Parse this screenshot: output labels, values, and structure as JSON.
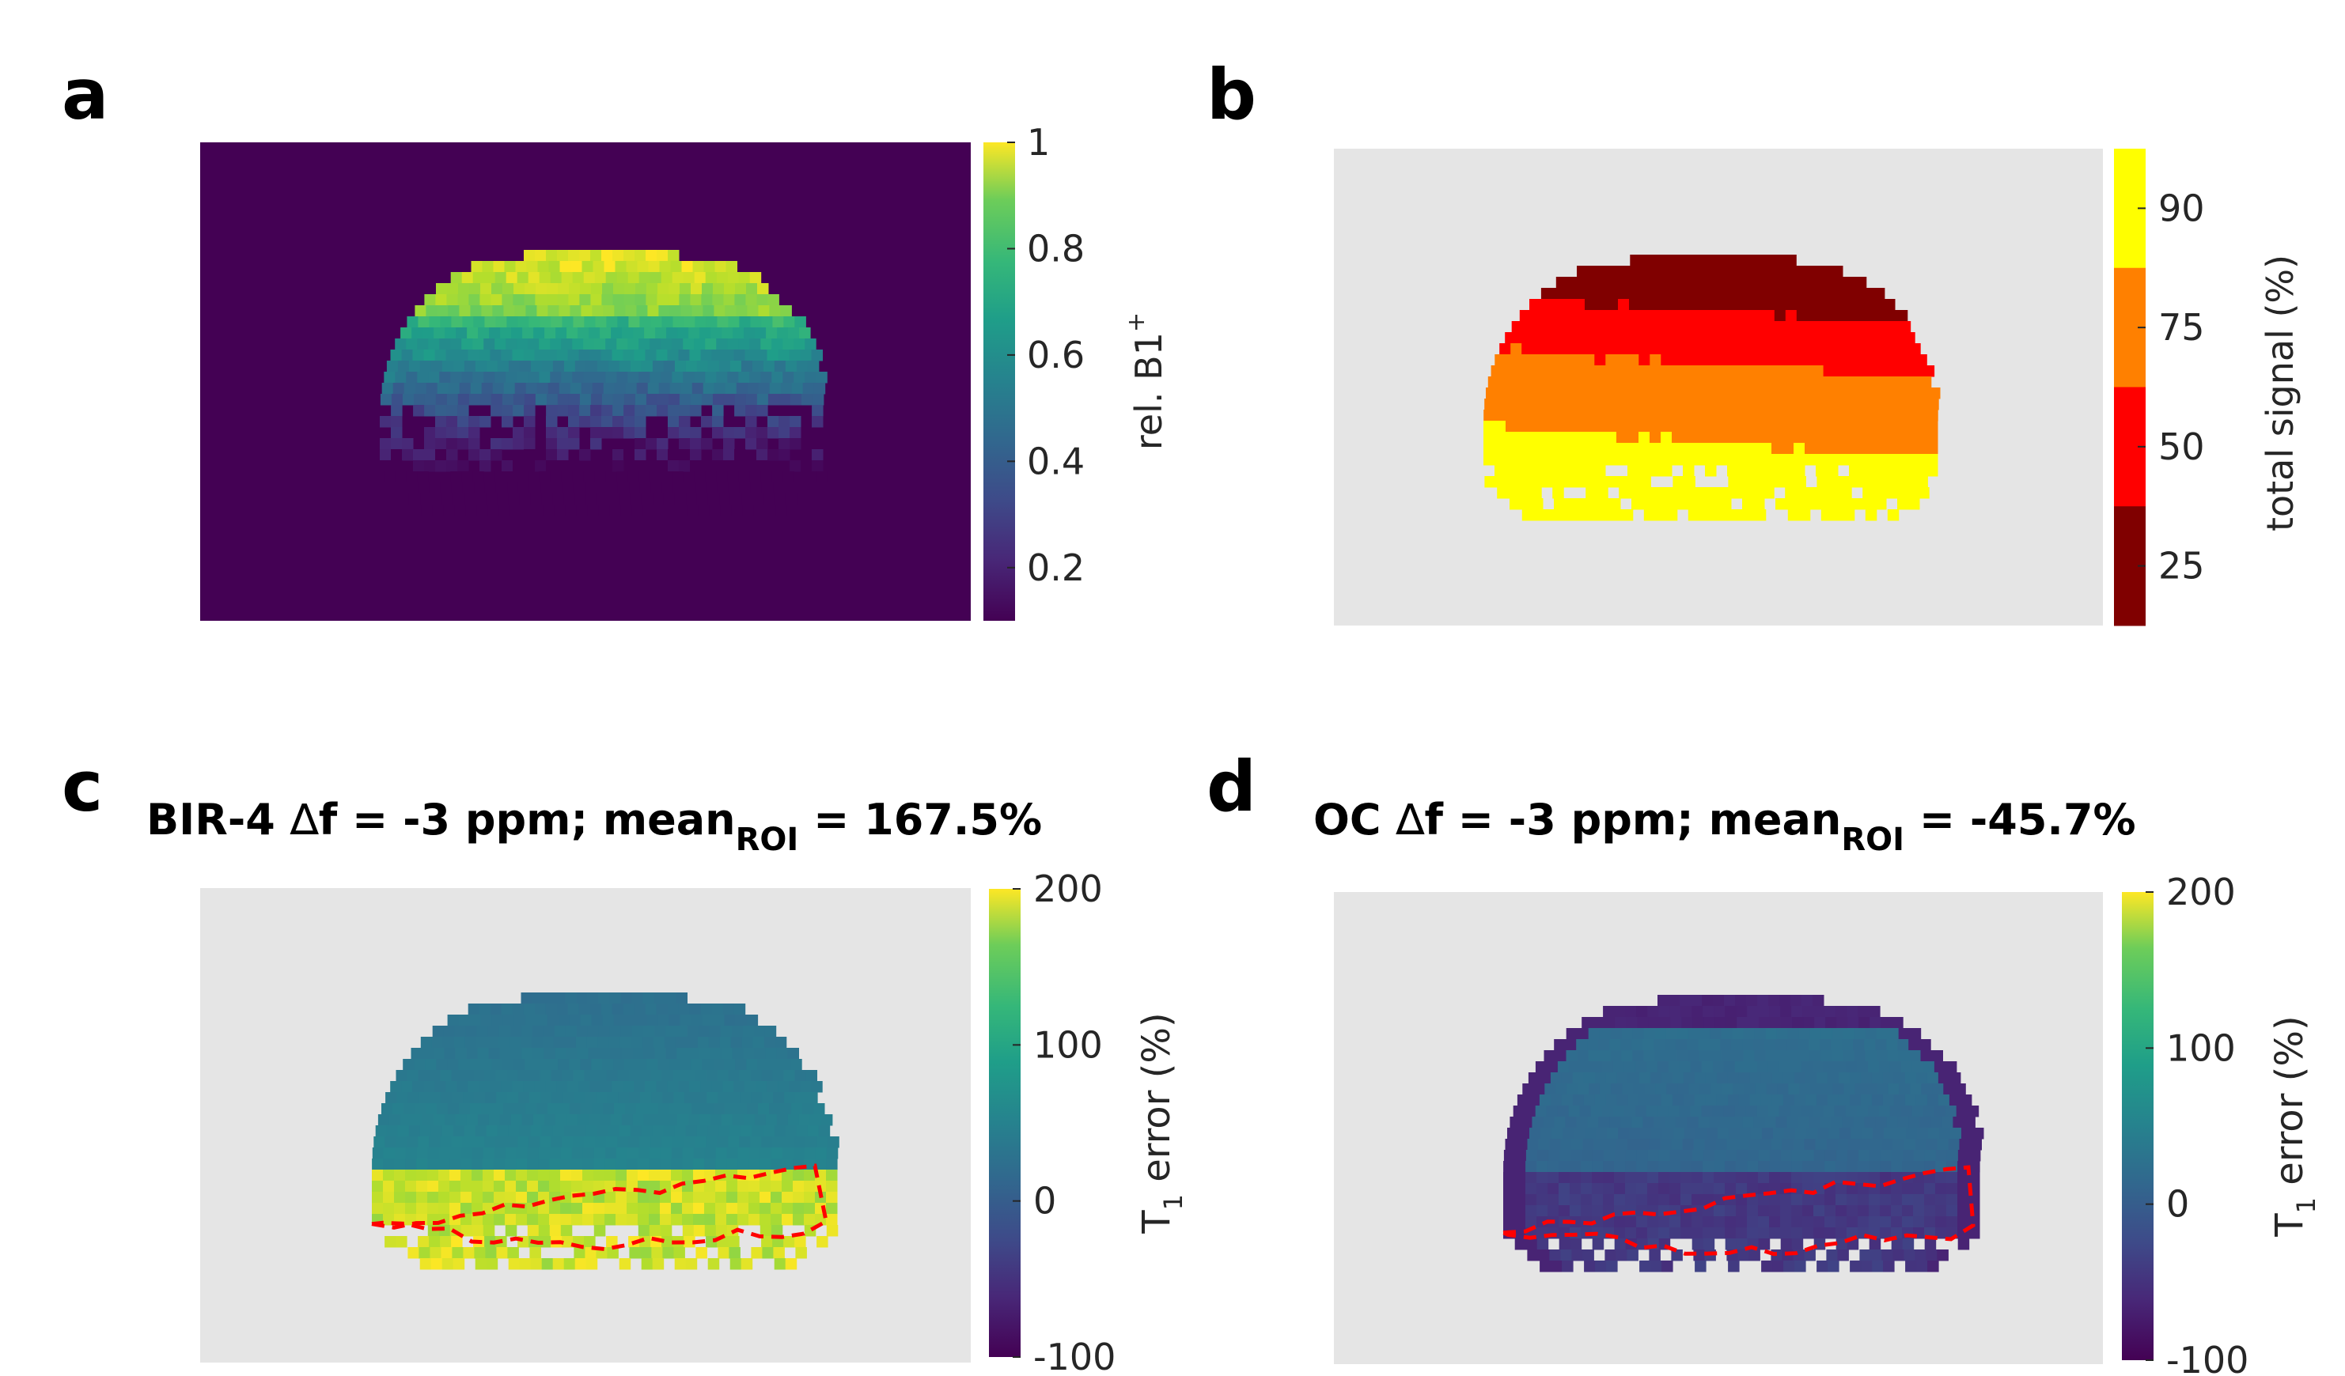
{
  "chart_data": [
    {
      "panel": "a",
      "type": "heatmap",
      "title": "",
      "colormap": "viridis",
      "clim": [
        0.1,
        1
      ],
      "colorbar": {
        "label": "rel. B1",
        "label_sup": "+",
        "ticks": [
          1,
          0.8,
          0.6,
          0.4,
          0.2
        ]
      },
      "background": "#440154"
    },
    {
      "panel": "b",
      "type": "heatmap",
      "title": "",
      "colormap": "discrete-hot",
      "colorbar": {
        "label": "total signal (%)",
        "ticks": [
          90,
          75,
          50,
          25
        ],
        "bands": [
          "#FFFF00",
          "#FF8000",
          "#FF0000",
          "#800000"
        ]
      },
      "background": "#E5E5E5"
    },
    {
      "panel": "c",
      "type": "heatmap",
      "title_prefix": "BIR-4 ",
      "title_delta": "∆",
      "title_main": "f = -3 ppm; mean",
      "title_sub": "ROI",
      "title_suffix": " = 167.5%",
      "mean_roi_percent": 167.5,
      "colormap": "viridis",
      "clim": [
        -100,
        200
      ],
      "colorbar": {
        "label_main": "T",
        "label_sub": "1",
        "label_rest": " error (%)",
        "ticks": [
          200,
          100,
          0,
          -100
        ]
      },
      "background": "#E5E5E5",
      "roi_outline_color": "#FF0000"
    },
    {
      "panel": "d",
      "type": "heatmap",
      "title_prefix": "OC ",
      "title_delta": "∆",
      "title_main": "f = -3 ppm; mean",
      "title_sub": "ROI",
      "title_suffix": " = -45.7%",
      "mean_roi_percent": -45.7,
      "colormap": "viridis",
      "clim": [
        -100,
        200
      ],
      "colorbar": {
        "label_main": "T",
        "label_sub": "1",
        "label_rest": " error (%)",
        "ticks": [
          200,
          100,
          0,
          -100
        ]
      },
      "background": "#E5E5E5",
      "roi_outline_color": "#FF0000"
    }
  ],
  "panel_labels": [
    "a",
    "b",
    "c",
    "d"
  ]
}
